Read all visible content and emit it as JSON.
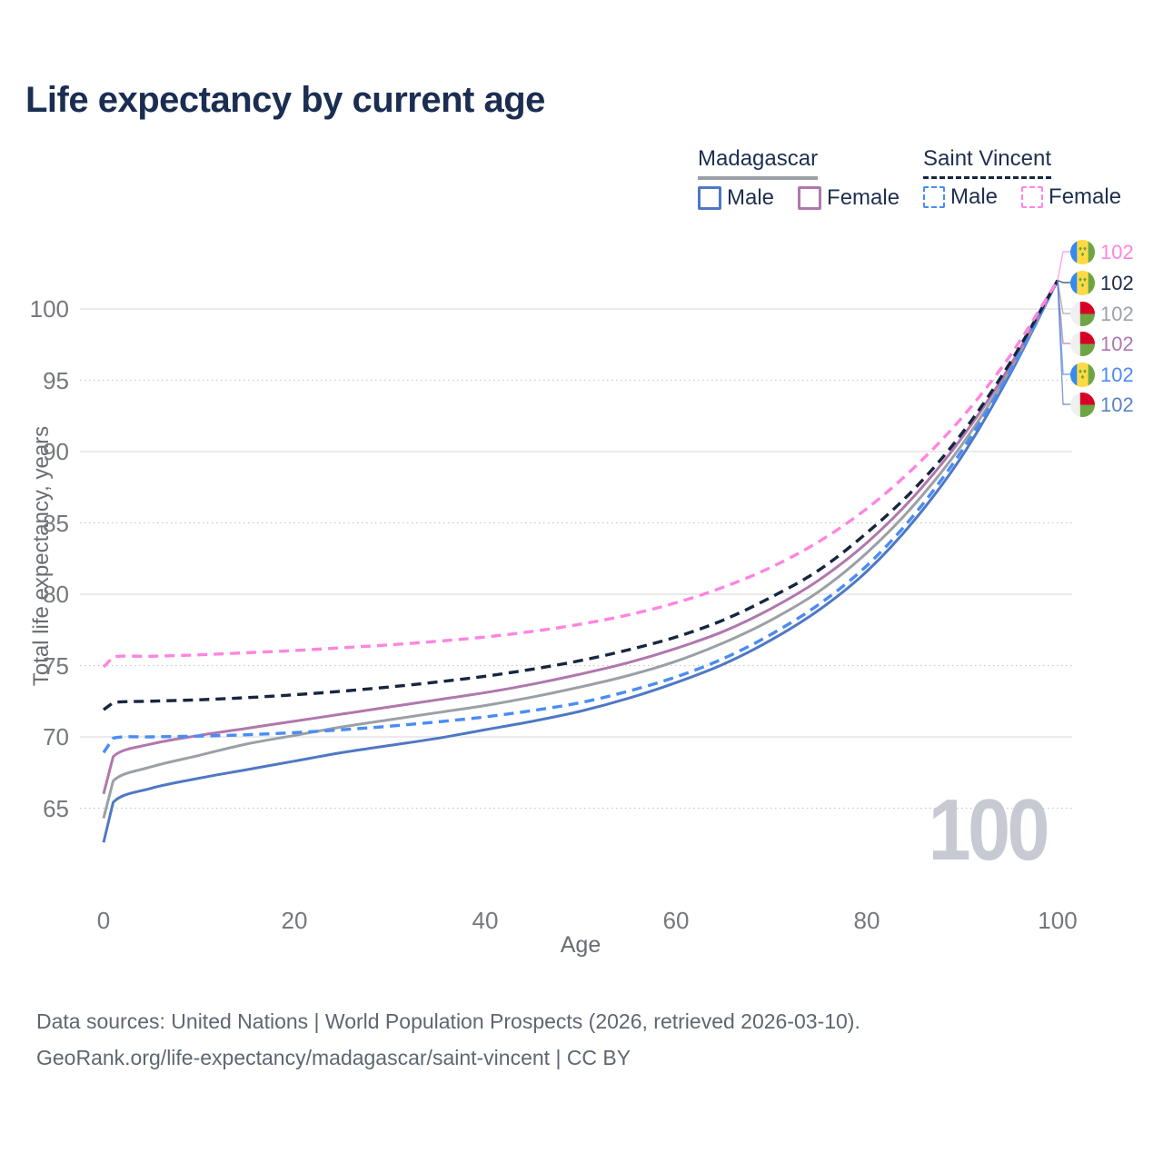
{
  "title": "Life expectancy by current age",
  "watermark": "100",
  "legend": {
    "groups": [
      {
        "name": "Madagascar",
        "line_style": "solid",
        "underline_color": "#9aa0a6",
        "items": [
          {
            "label": "Male",
            "color": "#4f78c4",
            "dashed": false
          },
          {
            "label": "Female",
            "color": "#b077ad",
            "dashed": false
          }
        ]
      },
      {
        "name": "Saint Vincent",
        "line_style": "dashed",
        "underline_color": "#17263f",
        "items": [
          {
            "label": "Male",
            "color": "#4a8cf4",
            "dashed": true
          },
          {
            "label": "Female",
            "color": "#ff85e0",
            "dashed": true
          }
        ]
      }
    ]
  },
  "axes": {
    "x": {
      "label": "Age",
      "ticks": [
        0,
        20,
        40,
        60,
        80,
        100
      ],
      "range": [
        0,
        100
      ]
    },
    "y": {
      "label": "Total life expectancy, years",
      "ticks": [
        65,
        70,
        75,
        80,
        85,
        90,
        95,
        100
      ],
      "range": [
        60,
        103
      ]
    }
  },
  "chart_data": {
    "type": "line",
    "title": "Life expectancy by current age",
    "xlabel": "Age",
    "ylabel": "Total life expectancy, years",
    "xlim": [
      0,
      100
    ],
    "ylim": [
      60,
      103
    ],
    "grid": true,
    "legend_position": "top-right",
    "x": [
      0,
      1,
      5,
      10,
      15,
      20,
      25,
      30,
      35,
      40,
      45,
      50,
      55,
      60,
      65,
      70,
      75,
      80,
      85,
      90,
      95,
      100
    ],
    "series": [
      {
        "name": "Madagascar Male",
        "color": "#4f78c4",
        "dashed": false,
        "values": [
          62.6,
          65.4,
          66.4,
          67.1,
          67.7,
          68.3,
          68.9,
          69.4,
          69.9,
          70.5,
          71.1,
          71.8,
          72.7,
          73.8,
          75.1,
          76.8,
          78.9,
          81.6,
          85.2,
          89.7,
          95.4,
          102
        ]
      },
      {
        "name": "Madagascar Total",
        "color": "#9aa0a6",
        "dashed": false,
        "values": [
          64.3,
          66.9,
          67.9,
          68.7,
          69.5,
          70.1,
          70.7,
          71.2,
          71.7,
          72.2,
          72.8,
          73.5,
          74.3,
          75.3,
          76.6,
          78.2,
          80.2,
          82.9,
          86.3,
          90.5,
          95.7,
          102
        ]
      },
      {
        "name": "Madagascar Female",
        "color": "#b077ad",
        "dashed": false,
        "values": [
          66.0,
          68.6,
          69.5,
          70.1,
          70.6,
          71.1,
          71.6,
          72.1,
          72.6,
          73.1,
          73.7,
          74.4,
          75.2,
          76.2,
          77.4,
          79.0,
          81.0,
          83.6,
          86.9,
          91.0,
          96.0,
          102
        ]
      },
      {
        "name": "Saint Vincent Male",
        "color": "#4a8cf4",
        "dashed": true,
        "values": [
          68.9,
          69.9,
          70.0,
          70.05,
          70.15,
          70.3,
          70.5,
          70.75,
          71.05,
          71.4,
          71.85,
          72.4,
          73.2,
          74.2,
          75.5,
          77.2,
          79.3,
          82.0,
          85.6,
          90.1,
          95.6,
          102
        ]
      },
      {
        "name": "Saint Vincent Total",
        "color": "#17263f",
        "dashed": true,
        "values": [
          71.9,
          72.4,
          72.5,
          72.6,
          72.75,
          72.95,
          73.2,
          73.5,
          73.85,
          74.25,
          74.75,
          75.35,
          76.1,
          77.0,
          78.2,
          79.8,
          81.7,
          84.3,
          87.4,
          91.3,
          96.2,
          102
        ]
      },
      {
        "name": "Saint Vincent Female",
        "color": "#ff85e0",
        "dashed": true,
        "values": [
          74.9,
          75.6,
          75.65,
          75.75,
          75.9,
          76.05,
          76.25,
          76.45,
          76.7,
          77.0,
          77.4,
          77.9,
          78.55,
          79.4,
          80.5,
          81.9,
          83.7,
          86.0,
          88.9,
          92.4,
          96.7,
          102
        ]
      }
    ]
  },
  "endpoints": [
    {
      "value": "102",
      "flag": "saint-vincent",
      "color": "#ff85e0",
      "series": "Saint Vincent Female"
    },
    {
      "value": "102",
      "flag": "saint-vincent",
      "color": "#1b2b49",
      "series": "Saint Vincent Total"
    },
    {
      "value": "102",
      "flag": "madagascar",
      "color": "#9ea1a8",
      "series": "Madagascar Total"
    },
    {
      "value": "102",
      "flag": "madagascar",
      "color": "#b077ad",
      "series": "Madagascar Female"
    },
    {
      "value": "102",
      "flag": "saint-vincent",
      "color": "#4a8cf4",
      "series": "Saint Vincent Male"
    },
    {
      "value": "102",
      "flag": "madagascar",
      "color": "#5a82c8",
      "series": "Madagascar Male"
    }
  ],
  "footer": {
    "line1": "Data sources: United Nations | World Population Prospects (2026, retrieved 2026-03-10).",
    "line2": "GeoRank.org/life-expectancy/madagascar/saint-vincent | CC BY"
  },
  "flag_colors": {
    "saint_vincent": {
      "blue": "#338af3",
      "yellow": "#ffda44",
      "green": "#6da544"
    },
    "madagascar": {
      "white": "#f0f0f0",
      "red": "#d80027",
      "green": "#6da544"
    }
  }
}
